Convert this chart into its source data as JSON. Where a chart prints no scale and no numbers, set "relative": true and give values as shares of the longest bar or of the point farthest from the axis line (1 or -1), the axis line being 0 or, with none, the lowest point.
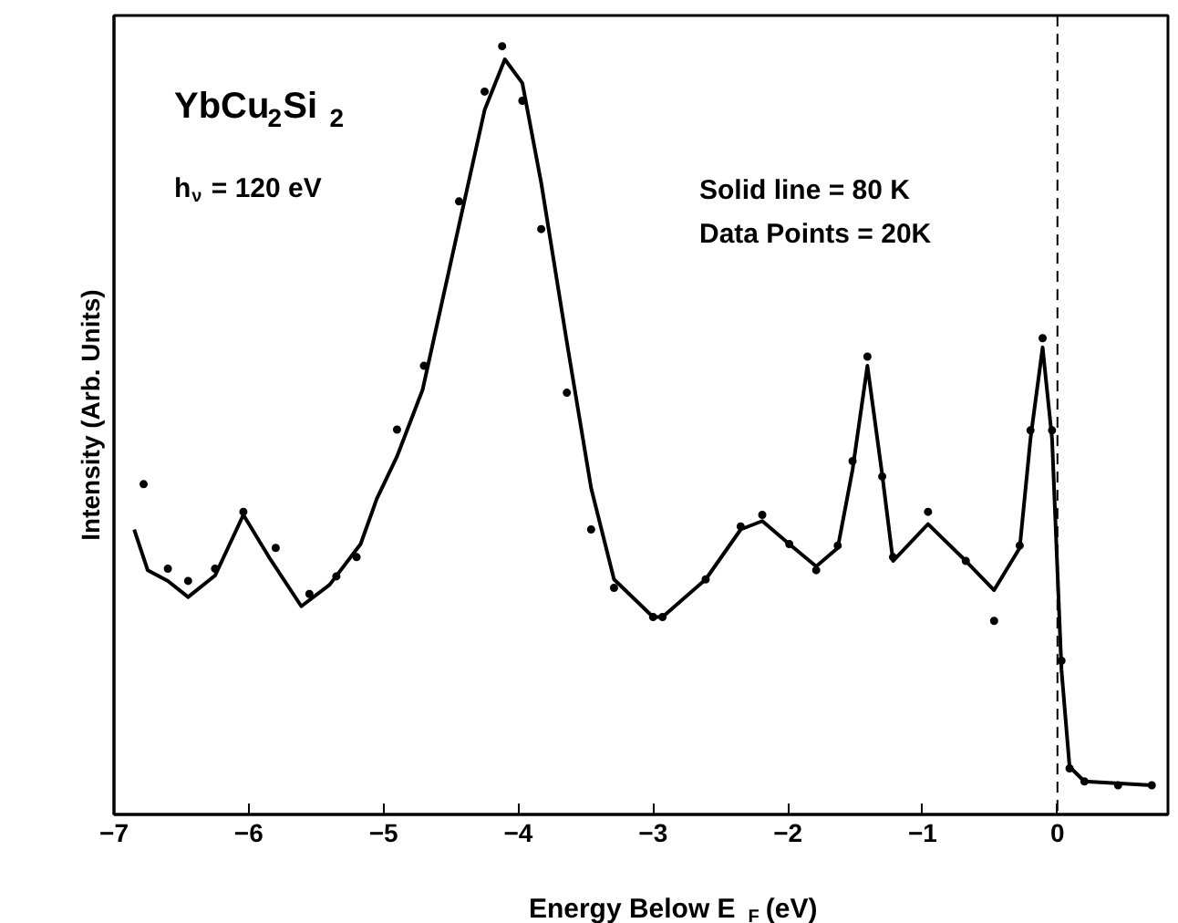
{
  "chart_data": {
    "type": "line",
    "relative": true,
    "xlabel": "Energy Below E$_{F}$ (eV)",
    "ylabel": "Intensity (Arb. Units)",
    "annotations": [
      "YbCu$_{2}$Si$_{2}$",
      "h$_{ν}$ = 120 eV",
      "Solid line = 80 K",
      "Data Points = 20K"
    ],
    "xlim": [
      -7,
      0.82
    ],
    "xticks": [
      -7,
      -6,
      -5,
      -4,
      -3,
      -2,
      -1,
      0
    ],
    "grid": false,
    "line_style": "solid",
    "ref_lines": [
      {
        "axis": "x",
        "value": 0,
        "line_style": "dashed",
        "color": "#000000"
      }
    ],
    "series": [
      {
        "color": "#000000",
        "x": [
          -6.85,
          -6.75,
          -6.6,
          -6.45,
          -6.25,
          -6.04,
          -5.85,
          -5.61,
          -5.4,
          -5.17,
          -5.05,
          -4.9,
          -4.71,
          -4.44,
          -4.25,
          -4.1,
          -3.97,
          -3.83,
          -3.64,
          -3.46,
          -3.29,
          -3.0,
          -2.93,
          -2.61,
          -2.35,
          -2.19,
          -1.99,
          -1.79,
          -1.63,
          -1.52,
          -1.41,
          -1.3,
          -1.22,
          -0.96,
          -0.68,
          -0.47,
          -0.28,
          -0.2,
          -0.11,
          -0.04,
          0.03,
          0.09,
          0.2,
          0.7
        ],
        "values": [
          0.371,
          0.318,
          0.304,
          0.283,
          0.311,
          0.39,
          0.335,
          0.271,
          0.299,
          0.352,
          0.411,
          0.466,
          0.553,
          0.767,
          0.917,
          0.983,
          0.952,
          0.822,
          0.615,
          0.425,
          0.306,
          0.257,
          0.257,
          0.306,
          0.371,
          0.382,
          0.352,
          0.323,
          0.347,
          0.449,
          0.584,
          0.442,
          0.33,
          0.378,
          0.33,
          0.292,
          0.347,
          0.489,
          0.608,
          0.489,
          0.188,
          0.062,
          0.043,
          0.038
        ]
      },
      {
        "type": "scatter",
        "color": "#000000",
        "marker": "circle",
        "x": [
          -6.78,
          -6.6,
          -6.45,
          -6.25,
          -6.04,
          -5.8,
          -5.55,
          -5.35,
          -5.2,
          -4.9,
          -4.7,
          -4.44,
          -4.25,
          -4.12,
          -3.97,
          -3.83,
          -3.64,
          -3.46,
          -3.29,
          -3.0,
          -2.93,
          -2.61,
          -2.35,
          -2.19,
          -1.99,
          -1.79,
          -1.63,
          -1.52,
          -1.41,
          -1.3,
          -1.22,
          -0.96,
          -0.68,
          -0.47,
          -0.28,
          -0.2,
          -0.11,
          -0.04,
          0.03,
          0.09,
          0.2,
          0.45,
          0.7
        ],
        "values": [
          0.43,
          0.32,
          0.304,
          0.32,
          0.394,
          0.347,
          0.287,
          0.31,
          0.335,
          0.501,
          0.584,
          0.798,
          0.941,
          1.0,
          0.929,
          0.762,
          0.549,
          0.371,
          0.295,
          0.257,
          0.257,
          0.306,
          0.375,
          0.39,
          0.352,
          0.318,
          0.35,
          0.46,
          0.596,
          0.44,
          0.335,
          0.394,
          0.33,
          0.252,
          0.35,
          0.5,
          0.62,
          0.5,
          0.2,
          0.06,
          0.043,
          0.038,
          0.038
        ]
      }
    ]
  }
}
